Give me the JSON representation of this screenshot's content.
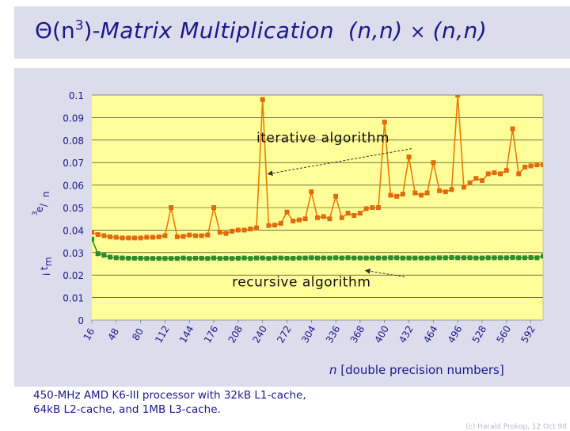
{
  "slide": {
    "title_prefix": "Θ(n",
    "title_exp": "3",
    "title_close": ")-",
    "title_main": "Matrix Multiplication",
    "title_dim_a": "(n,n)",
    "title_times": "×",
    "title_dim_b": "(n,n)",
    "footnote_line1": "450-MHz AMD K6-III processor with 32kB L1-cache,",
    "footnote_line2": "64kB L2-cache, and 1MB L3-cache.",
    "corner_credit": "(c) Harald Prokop, 12 Oct 98"
  },
  "colors": {
    "plot_bg": "#ffff99",
    "iterative": "#ee7a00",
    "iterative_marker": "#e06c10",
    "recursive": "#1c9c1c",
    "recursive_marker": "#2e8b2e",
    "label_text": "#1a1a8c",
    "title_text": "#1a1a8c"
  },
  "chart_data": {
    "type": "line",
    "ylabel_parts": [
      "t",
      "i",
      "m",
      "e",
      "/",
      "n",
      "3"
    ],
    "xlabel_var": "n",
    "xlabel_rest": "[double precision numbers]",
    "ylim": [
      0,
      0.1
    ],
    "yticks": [
      0,
      0.01,
      0.02,
      0.03,
      0.04,
      0.05,
      0.06,
      0.07,
      0.08,
      0.09,
      0.1
    ],
    "ytick_labels": [
      "0",
      "0.01",
      "0.02",
      "0.03",
      "0.04",
      "0.05",
      "0.06",
      "0.07",
      "0.08",
      "0.09",
      "0.1"
    ],
    "xlim": [
      16,
      608
    ],
    "xtick_labels": [
      16,
      48,
      80,
      112,
      144,
      176,
      208,
      240,
      272,
      304,
      336,
      368,
      400,
      432,
      464,
      496,
      528,
      560,
      592
    ],
    "grid": true,
    "x": [
      16,
      24,
      32,
      40,
      48,
      56,
      64,
      72,
      80,
      88,
      96,
      104,
      112,
      120,
      128,
      136,
      144,
      152,
      160,
      168,
      176,
      184,
      192,
      200,
      208,
      216,
      224,
      232,
      240,
      248,
      256,
      264,
      272,
      280,
      288,
      296,
      304,
      312,
      320,
      328,
      336,
      344,
      352,
      360,
      368,
      376,
      384,
      392,
      400,
      408,
      416,
      424,
      432,
      440,
      448,
      456,
      464,
      472,
      480,
      488,
      496,
      504,
      512,
      520,
      528,
      536,
      544,
      552,
      560,
      568,
      576,
      584,
      592,
      600,
      608
    ],
    "series": [
      {
        "name": "iterative",
        "values": [
          0.039,
          0.038,
          0.0375,
          0.037,
          0.0368,
          0.0365,
          0.0365,
          0.0365,
          0.0365,
          0.0368,
          0.0368,
          0.037,
          0.0375,
          0.05,
          0.037,
          0.0372,
          0.0378,
          0.0375,
          0.0375,
          0.0378,
          0.05,
          0.039,
          0.0385,
          0.0395,
          0.04,
          0.04,
          0.0405,
          0.041,
          0.098,
          0.042,
          0.0422,
          0.043,
          0.048,
          0.044,
          0.0445,
          0.045,
          0.057,
          0.0455,
          0.046,
          0.045,
          0.055,
          0.0455,
          0.0475,
          0.0465,
          0.0475,
          0.0495,
          0.05,
          0.05,
          0.088,
          0.0555,
          0.055,
          0.056,
          0.0725,
          0.0565,
          0.0555,
          0.0565,
          0.07,
          0.0575,
          0.057,
          0.058,
          0.1,
          0.059,
          0.061,
          0.063,
          0.062,
          0.065,
          0.0655,
          0.065,
          0.0665,
          0.085,
          0.065,
          0.068,
          0.0685,
          0.069,
          0.069
        ]
      },
      {
        "name": "recursive",
        "values": [
          0.036,
          0.0295,
          0.0288,
          0.028,
          0.0277,
          0.0276,
          0.0275,
          0.0275,
          0.0275,
          0.0274,
          0.0274,
          0.0274,
          0.0274,
          0.0274,
          0.0274,
          0.0276,
          0.0274,
          0.0275,
          0.0275,
          0.0274,
          0.0276,
          0.0274,
          0.0275,
          0.0274,
          0.0275,
          0.0276,
          0.0274,
          0.0276,
          0.0276,
          0.0274,
          0.0276,
          0.0276,
          0.0275,
          0.0275,
          0.0276,
          0.0276,
          0.0277,
          0.0276,
          0.0276,
          0.0276,
          0.0277,
          0.0276,
          0.0277,
          0.0276,
          0.0276,
          0.0276,
          0.0276,
          0.0276,
          0.0276,
          0.0277,
          0.0277,
          0.0276,
          0.0276,
          0.0276,
          0.0276,
          0.0276,
          0.0276,
          0.0277,
          0.0277,
          0.0278,
          0.0277,
          0.0277,
          0.0277,
          0.0276,
          0.0276,
          0.0277,
          0.0277,
          0.0277,
          0.0277,
          0.0278,
          0.0277,
          0.0277,
          0.0278,
          0.0277,
          0.0284
        ]
      }
    ],
    "annotations": [
      {
        "text": "iterative algorithm",
        "x": 232,
        "y": 0.079,
        "arrow_to": [
          248,
          0.065
        ]
      },
      {
        "text": "recursive algorithm",
        "x": 200,
        "y": 0.015,
        "arrow_to": [
          376,
          0.022
        ]
      }
    ]
  }
}
